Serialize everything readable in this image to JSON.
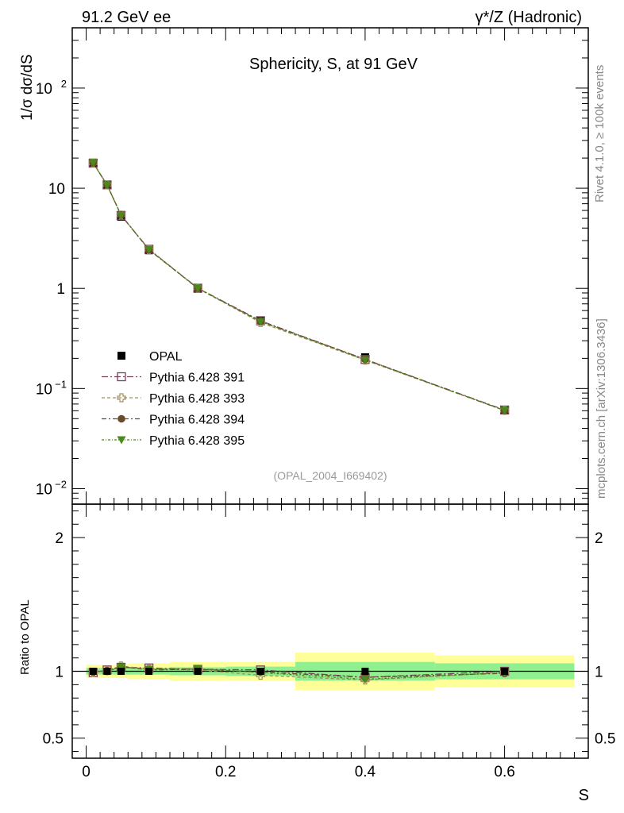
{
  "header": {
    "left": "91.2 GeV ee",
    "right": "γ*/Z (Hadronic)"
  },
  "side_labels": {
    "rivet": "Rivet 4.1.0, ≥ 100k events",
    "mcplots": "mcplots.cern.ch [arXiv:1306.3436]"
  },
  "chart_data": [
    {
      "type": "line",
      "panel": "main",
      "title": "Sphericity, S, at 91 GeV",
      "ylabel": "1/σ  dσ/dS",
      "yscale": "log",
      "ylim": [
        0.007,
        400
      ],
      "xlim": [
        -0.02,
        0.72
      ],
      "yticks": [
        {
          "value": 0.01,
          "label": "10",
          "sup": "−2"
        },
        {
          "value": 0.1,
          "label": "10",
          "sup": "−1"
        },
        {
          "value": 1,
          "label": "1",
          "sup": ""
        },
        {
          "value": 10,
          "label": "10",
          "sup": ""
        },
        {
          "value": 100,
          "label": "10",
          "sup": "2"
        }
      ],
      "watermark": "(OPAL_2004_I669402)",
      "legend_position": "lower-left",
      "x": [
        0.01,
        0.03,
        0.05,
        0.09,
        0.16,
        0.25,
        0.4,
        0.6
      ],
      "series": [
        {
          "name": "OPAL",
          "marker": "filled-square",
          "color": "#000000",
          "values": [
            18.0,
            10.7,
            5.2,
            2.4,
            0.99,
            0.47,
            0.205,
            0.061
          ]
        },
        {
          "name": "Pythia 6.428 391",
          "marker": "open-square",
          "color": "#7b3f5f",
          "values": [
            17.8,
            10.8,
            5.35,
            2.46,
            1.005,
            0.475,
            0.195,
            0.061
          ]
        },
        {
          "name": "Pythia 6.428 393",
          "marker": "open-cross",
          "color": "#a09060",
          "values": [
            17.8,
            10.8,
            5.4,
            2.44,
            1.0,
            0.455,
            0.192,
            0.0605
          ]
        },
        {
          "name": "Pythia 6.428 394",
          "marker": "filled-circle",
          "color": "#6b4a2a",
          "values": [
            17.9,
            10.8,
            5.4,
            2.43,
            1.0,
            0.468,
            0.196,
            0.0602
          ]
        },
        {
          "name": "Pythia 6.428 395",
          "marker": "filled-triangle-down",
          "color": "#4a8a1a",
          "values": [
            18.0,
            10.75,
            5.35,
            2.44,
            1.005,
            0.465,
            0.193,
            0.0605
          ]
        }
      ]
    },
    {
      "type": "line",
      "panel": "ratio",
      "xlabel": "S",
      "ylabel": "Ratio to OPAL",
      "ylim": [
        0.35,
        2.25
      ],
      "xlim": [
        -0.02,
        0.72
      ],
      "yticks": [
        0.5,
        1,
        2
      ],
      "xticks": [
        0,
        0.2,
        0.4,
        0.6
      ],
      "bands": [
        {
          "x0": 0.0,
          "x1": 0.02,
          "stat": 0.025,
          "total": 0.05
        },
        {
          "x0": 0.02,
          "x1": 0.04,
          "stat": 0.025,
          "total": 0.05
        },
        {
          "x0": 0.04,
          "x1": 0.06,
          "stat": 0.025,
          "total": 0.05
        },
        {
          "x0": 0.06,
          "x1": 0.12,
          "stat": 0.025,
          "total": 0.06
        },
        {
          "x0": 0.12,
          "x1": 0.2,
          "stat": 0.03,
          "total": 0.07
        },
        {
          "x0": 0.2,
          "x1": 0.3,
          "stat": 0.035,
          "total": 0.07
        },
        {
          "x0": 0.3,
          "x1": 0.5,
          "stat": 0.07,
          "total": 0.14
        },
        {
          "x0": 0.5,
          "x1": 0.7,
          "stat": 0.06,
          "total": 0.12
        }
      ],
      "x": [
        0.01,
        0.03,
        0.05,
        0.09,
        0.16,
        0.25,
        0.4,
        0.6
      ],
      "series": [
        {
          "name": "Pythia 6.428 391",
          "values": [
            0.99,
            1.01,
            1.03,
            1.025,
            1.015,
            1.01,
            0.955,
            1.0
          ]
        },
        {
          "name": "Pythia 6.428 393",
          "values": [
            0.99,
            1.005,
            1.04,
            1.015,
            1.01,
            0.97,
            0.935,
            0.99
          ]
        },
        {
          "name": "Pythia 6.428 394",
          "values": [
            0.995,
            1.005,
            1.035,
            1.01,
            1.015,
            0.995,
            0.955,
            0.985
          ]
        },
        {
          "name": "Pythia 6.428 395",
          "values": [
            1.0,
            1.0,
            1.03,
            1.015,
            1.02,
            0.99,
            0.94,
            0.99
          ]
        }
      ]
    }
  ]
}
